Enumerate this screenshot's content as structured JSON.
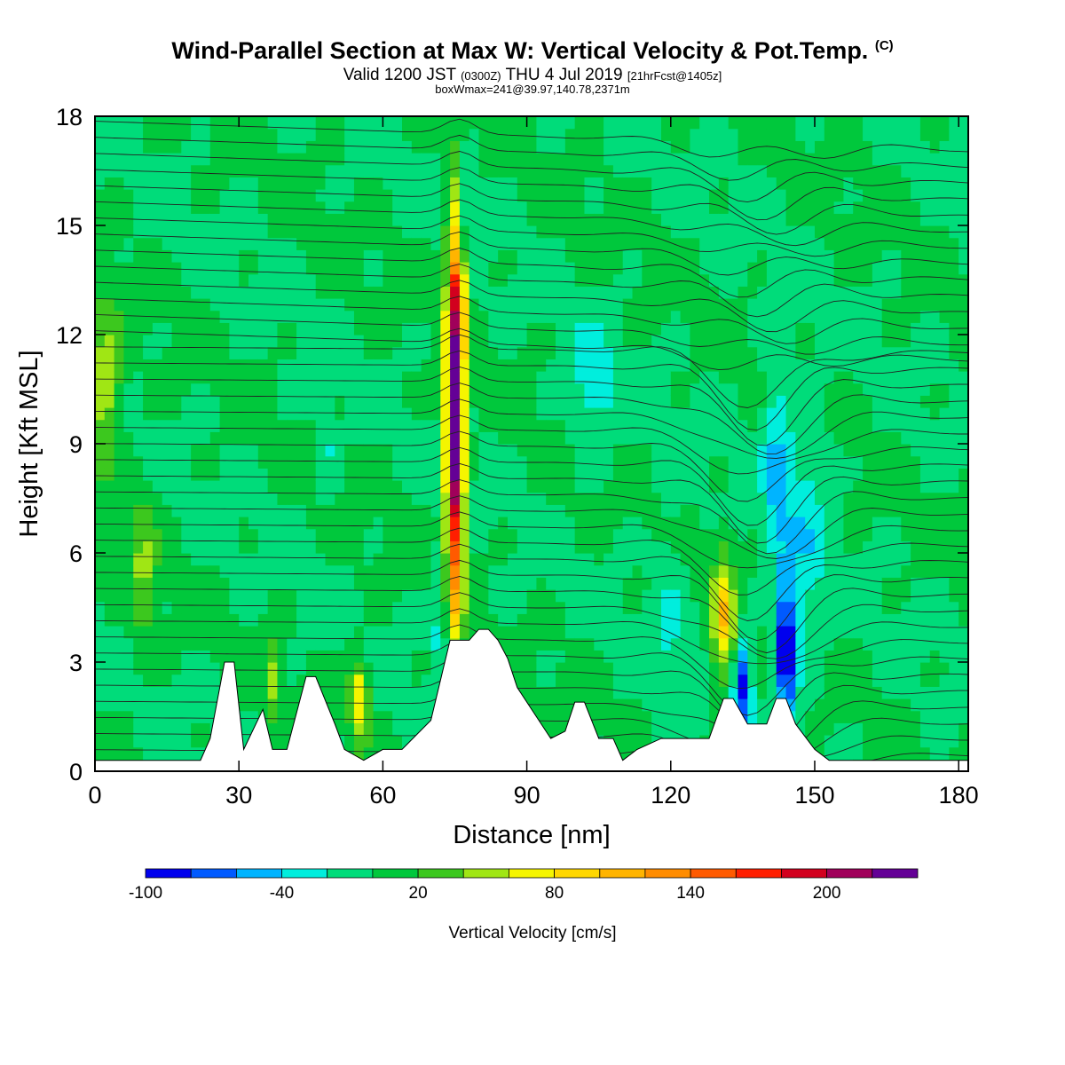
{
  "header": {
    "title": "Wind-Parallel Section at Max W: Vertical Velocity & Pot.Temp.",
    "title_mark": "(C)",
    "valid_prefix": "Valid 1200 JST",
    "valid_utc": "(0300Z)",
    "valid_date": "THU 4 Jul 2019",
    "forecast": "[21hrFcst@1405z]",
    "boxline": "boxWmax=241@39.97,140.78,2371m"
  },
  "chart_data": {
    "type": "heatmap",
    "title": "Wind-Parallel Section at Max W: Vertical Velocity & Pot.Temp.",
    "xlabel": "Distance [nm]",
    "ylabel": "Height [Kft MSL]",
    "xlim": [
      0,
      182
    ],
    "ylim": [
      0,
      18
    ],
    "xticks": [
      "0",
      "30",
      "60",
      "90",
      "120",
      "150",
      "180"
    ],
    "yticks": [
      "0",
      "3",
      "6",
      "9",
      "12",
      "15",
      "18"
    ],
    "background_value": 0,
    "features": [
      {
        "x": 75,
        "y": 9.5,
        "sx": 1.3,
        "sy": 3.6,
        "w": 241
      },
      {
        "x": 76,
        "y": 13.2,
        "sx": 0.9,
        "sy": 1.0,
        "w": 70
      },
      {
        "x": 77.5,
        "y": 15.2,
        "sx": 0.8,
        "sy": 1.0,
        "w": -35
      },
      {
        "x": 131,
        "y": 4.2,
        "sx": 1.6,
        "sy": 1.2,
        "w": 95
      },
      {
        "x": 135,
        "y": 2.3,
        "sx": 1.3,
        "sy": 0.9,
        "w": -85
      },
      {
        "x": 144,
        "y": 3.3,
        "sx": 1.5,
        "sy": 1.3,
        "w": -110
      },
      {
        "x": 142,
        "y": 8.5,
        "sx": 2.0,
        "sy": 2.0,
        "w": -40
      },
      {
        "x": 148,
        "y": 6.5,
        "sx": 3.5,
        "sy": 2.5,
        "w": -30
      },
      {
        "x": 104,
        "y": 10.5,
        "sx": 3.5,
        "sy": 1.3,
        "w": -30
      },
      {
        "x": 120,
        "y": 4.0,
        "sx": 2.5,
        "sy": 2.5,
        "w": -20
      },
      {
        "x": 72,
        "y": 4.0,
        "sx": 1.3,
        "sy": 1.5,
        "w": -30
      },
      {
        "x": 55,
        "y": 2.0,
        "sx": 1.4,
        "sy": 0.8,
        "w": 80
      },
      {
        "x": 2,
        "y": 10.5,
        "sx": 2.5,
        "sy": 1.5,
        "w": 60
      },
      {
        "x": 10,
        "y": 5.5,
        "sx": 2.0,
        "sy": 1.5,
        "w": 40
      },
      {
        "x": 37,
        "y": 2.5,
        "sx": 1.2,
        "sy": 0.8,
        "w": 45
      },
      {
        "x": 48,
        "y": 9.0,
        "sx": 1.5,
        "sy": 1.0,
        "w": -25
      }
    ],
    "terrain_kft": [
      [
        0,
        0.3
      ],
      [
        22,
        0.3
      ],
      [
        24,
        0.9
      ],
      [
        27,
        3.0
      ],
      [
        29,
        3.0
      ],
      [
        31,
        0.6
      ],
      [
        35,
        1.7
      ],
      [
        37,
        0.6
      ],
      [
        40,
        0.6
      ],
      [
        44,
        2.6
      ],
      [
        46,
        2.6
      ],
      [
        50,
        1.3
      ],
      [
        52,
        0.6
      ],
      [
        56,
        0.3
      ],
      [
        60,
        0.6
      ],
      [
        64,
        0.6
      ],
      [
        70,
        1.4
      ],
      [
        74,
        3.6
      ],
      [
        78,
        3.6
      ],
      [
        80,
        3.9
      ],
      [
        82,
        3.9
      ],
      [
        84,
        3.6
      ],
      [
        86,
        3.1
      ],
      [
        88,
        2.3
      ],
      [
        92,
        1.5
      ],
      [
        95,
        0.9
      ],
      [
        98,
        1.1
      ],
      [
        100,
        1.9
      ],
      [
        102,
        1.9
      ],
      [
        105,
        0.9
      ],
      [
        108,
        0.9
      ],
      [
        110,
        0.3
      ],
      [
        113,
        0.6
      ],
      [
        118,
        0.9
      ],
      [
        124,
        0.9
      ],
      [
        128,
        0.9
      ],
      [
        131,
        2.0
      ],
      [
        133,
        2.0
      ],
      [
        136,
        1.3
      ],
      [
        140,
        1.3
      ],
      [
        142,
        2.0
      ],
      [
        144,
        2.0
      ],
      [
        146,
        1.3
      ],
      [
        150,
        0.6
      ],
      [
        153,
        0.3
      ],
      [
        182,
        0.3
      ]
    ],
    "theta_contour_levels": [
      26,
      27,
      28,
      29,
      30,
      31,
      32,
      33,
      34,
      35,
      36,
      37,
      38,
      39,
      40,
      41,
      42,
      43,
      44,
      45,
      46,
      47,
      48,
      49,
      50,
      51,
      52,
      53,
      54,
      55,
      56,
      57,
      58,
      59,
      60,
      61,
      62,
      63,
      64,
      65,
      66,
      67
    ],
    "colorbar": {
      "label": "Vertical Velocity [cm/s]",
      "ticks": [
        {
          "value": -100,
          "label": "-100"
        },
        {
          "value": -40,
          "label": "-40"
        },
        {
          "value": 20,
          "label": "20"
        },
        {
          "value": 80,
          "label": "80"
        },
        {
          "value": 140,
          "label": "140"
        },
        {
          "value": 200,
          "label": "200"
        }
      ],
      "bins": [
        {
          "min": -100,
          "max": -80,
          "color": "#0000ee"
        },
        {
          "min": -80,
          "max": -60,
          "color": "#005aff"
        },
        {
          "min": -60,
          "max": -40,
          "color": "#00b4ff"
        },
        {
          "min": -40,
          "max": -20,
          "color": "#00eedd"
        },
        {
          "min": -20,
          "max": 0,
          "color": "#00dc7a"
        },
        {
          "min": 0,
          "max": 20,
          "color": "#00c83c"
        },
        {
          "min": 20,
          "max": 40,
          "color": "#3cc81e"
        },
        {
          "min": 40,
          "max": 60,
          "color": "#a0e614"
        },
        {
          "min": 60,
          "max": 80,
          "color": "#f5f500"
        },
        {
          "min": 80,
          "max": 100,
          "color": "#ffd700"
        },
        {
          "min": 100,
          "max": 120,
          "color": "#ffb400"
        },
        {
          "min": 120,
          "max": 140,
          "color": "#ff8c00"
        },
        {
          "min": 140,
          "max": 160,
          "color": "#ff5a00"
        },
        {
          "min": 160,
          "max": 180,
          "color": "#ff1e00"
        },
        {
          "min": 180,
          "max": 200,
          "color": "#d2001e"
        },
        {
          "min": 200,
          "max": 220,
          "color": "#a0005a"
        },
        {
          "min": 220,
          "max": 240,
          "color": "#640096"
        }
      ]
    }
  }
}
